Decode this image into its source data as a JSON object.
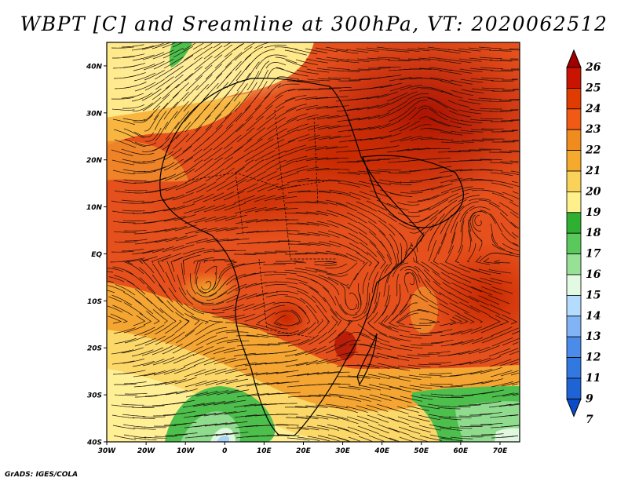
{
  "title": "WBPT [C] and Sreamline at 300hPa, VT: 2020062512",
  "credit": "GrADS: IGES/COLA",
  "map": {
    "lat_labels": [
      "40N",
      "30N",
      "20N",
      "10N",
      "EQ",
      "10S",
      "20S",
      "30S",
      "40S"
    ],
    "lon_labels": [
      "30W",
      "20W",
      "10W",
      "0",
      "10E",
      "20E",
      "30E",
      "40E",
      "50E",
      "60E",
      "70E"
    ],
    "lat_range": [
      -40,
      45
    ],
    "lon_range": [
      -30,
      75
    ],
    "field": "wet-bulb potential temperature",
    "overlay": "streamlines"
  },
  "colorbar": {
    "labels": [
      "26",
      "25",
      "24",
      "23",
      "22",
      "21",
      "20",
      "19",
      "18",
      "17",
      "16",
      "15",
      "14",
      "13",
      "12",
      "11",
      "9",
      "7"
    ],
    "colors": [
      "#a00000",
      "#c81400",
      "#e13c00",
      "#f05a14",
      "#f08c1e",
      "#f5aa2d",
      "#fad25a",
      "#fff08c",
      "#30b030",
      "#5ac85a",
      "#96e196",
      "#e1fae1",
      "#b4dcff",
      "#82b4f5",
      "#4b8ceb",
      "#3278e1",
      "#1e64d7",
      "#0a4bc8"
    ],
    "arrows": "both ends"
  }
}
